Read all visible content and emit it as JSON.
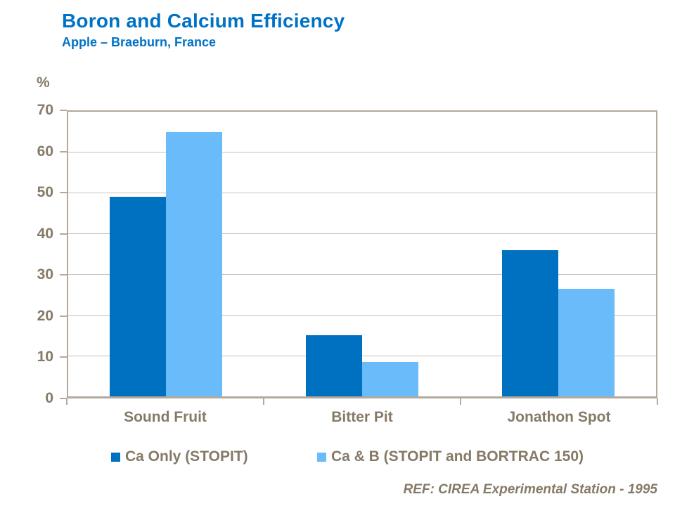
{
  "chart_data": {
    "type": "bar",
    "title": "Boron and Calcium Efficiency",
    "subtitle": "Apple – Braeburn, France",
    "unit_label": "%",
    "categories": [
      "Sound Fruit",
      "Bitter Pit",
      "Jonathon Spot"
    ],
    "series": [
      {
        "name": "Ca Only (STOPIT)",
        "color": "#0070C0",
        "values": [
          49,
          15,
          36
        ]
      },
      {
        "name": "Ca & B (STOPIT and BORTRAC 150)",
        "color": "#69BBFA",
        "values": [
          65,
          8.5,
          26.5
        ]
      }
    ],
    "ylim": [
      0,
      70
    ],
    "yticks": [
      0,
      10,
      20,
      30,
      40,
      50,
      60,
      70
    ],
    "grid": true,
    "legend_position": "bottom",
    "reference_note": "REF: CIREA Experimental Station - 1995"
  },
  "style": {
    "title_color": "#0072C6",
    "axis_text_color": "#857A66",
    "gridline_color": "#C9C0B4",
    "axis_line_color": "#B3A99C",
    "background": "#FFFFFF"
  }
}
